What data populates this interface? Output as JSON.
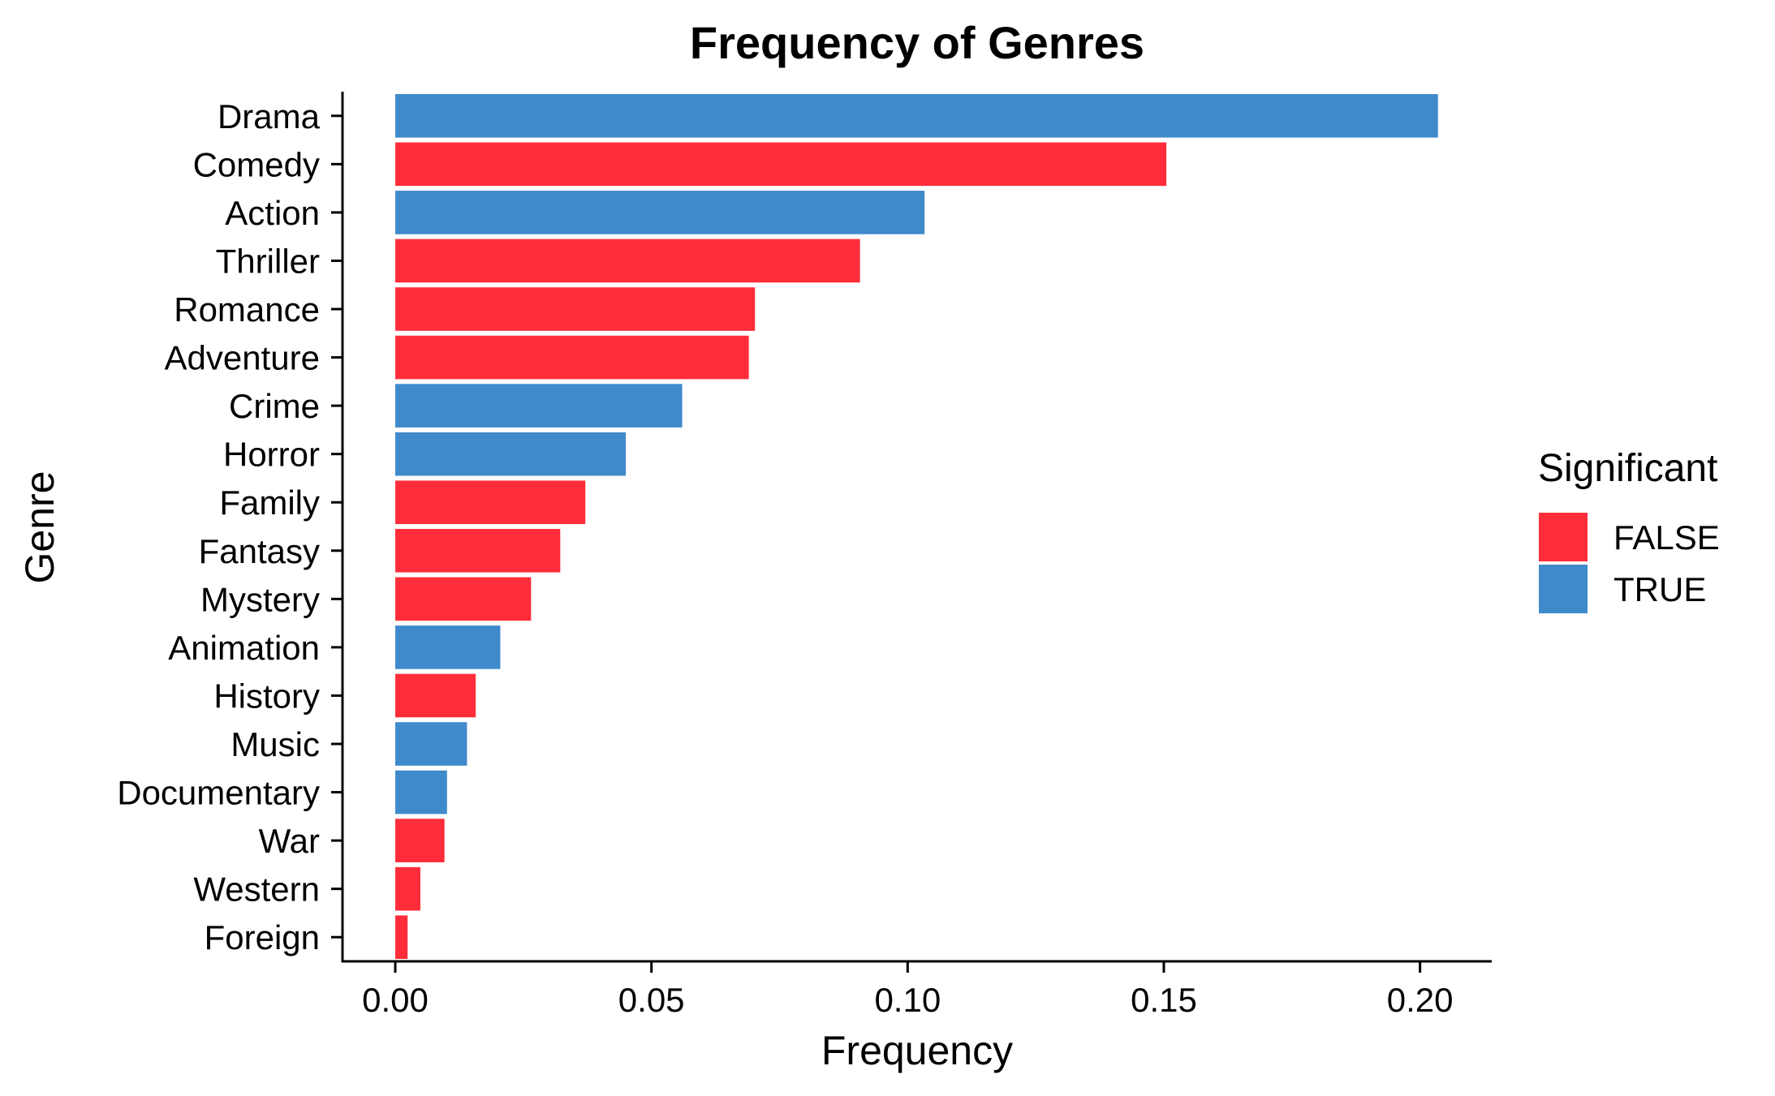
{
  "chart_data": {
    "type": "bar",
    "orientation": "horizontal",
    "title": "Frequency of Genres",
    "xlabel": "Frequency",
    "ylabel": "Genre",
    "xlim": [
      -0.0103,
      0.214
    ],
    "xticks": [
      0.0,
      0.05,
      0.1,
      0.15,
      0.2
    ],
    "xtick_labels": [
      "0.00",
      "0.05",
      "0.10",
      "0.15",
      "0.20"
    ],
    "grid": false,
    "legend": {
      "title": "Significant",
      "position": "right",
      "entries": [
        {
          "label": "FALSE",
          "color": "#FF2D3A"
        },
        {
          "label": "TRUE",
          "color": "#3F8ACB"
        }
      ]
    },
    "categories": [
      "Drama",
      "Comedy",
      "Action",
      "Thriller",
      "Romance",
      "Adventure",
      "Crime",
      "Horror",
      "Family",
      "Fantasy",
      "Mystery",
      "Animation",
      "History",
      "Music",
      "Documentary",
      "War",
      "Western",
      "Foreign"
    ],
    "values": [
      0.2035,
      0.1505,
      0.1033,
      0.0907,
      0.0702,
      0.069,
      0.056,
      0.045,
      0.0371,
      0.0322,
      0.0265,
      0.0205,
      0.0157,
      0.014,
      0.0101,
      0.0096,
      0.0049,
      0.0024
    ],
    "significant": [
      true,
      false,
      true,
      false,
      false,
      false,
      true,
      true,
      false,
      false,
      false,
      true,
      false,
      true,
      true,
      false,
      false,
      false
    ]
  }
}
